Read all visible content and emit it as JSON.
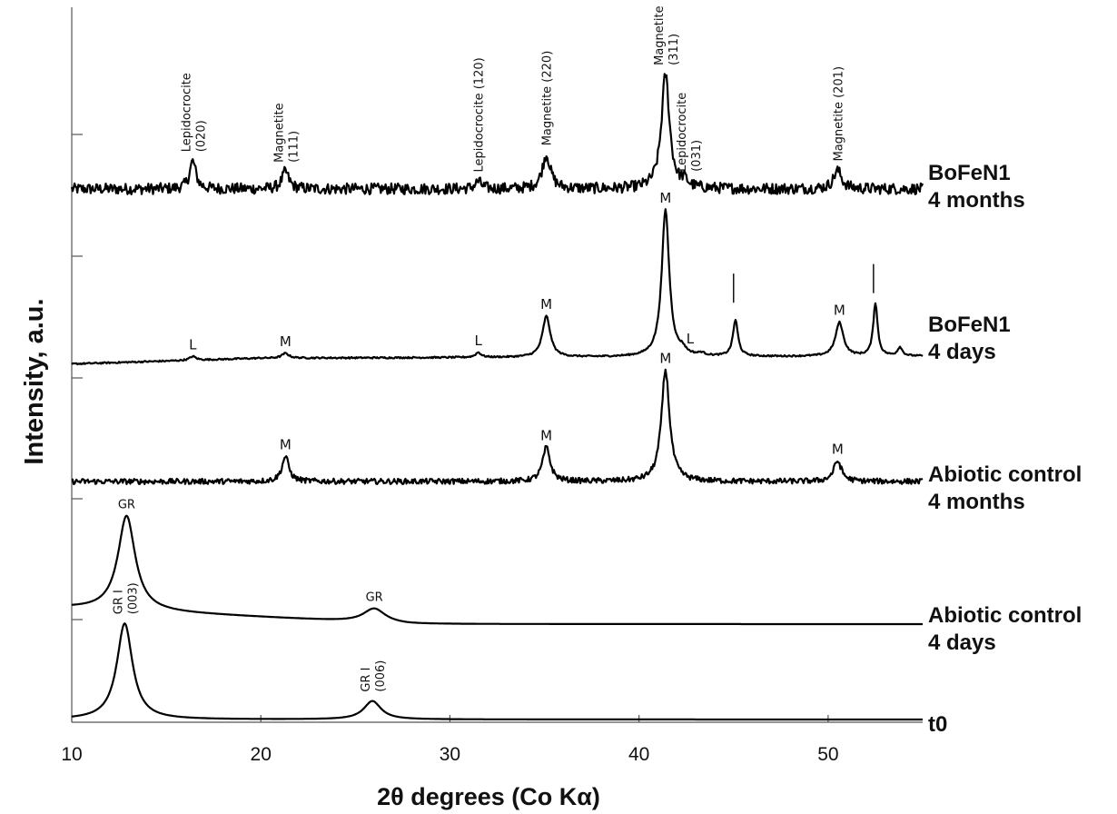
{
  "chart_data": {
    "type": "line",
    "xlabel": "2θ degrees (Co Kα)",
    "ylabel": "Intensity, a.u.",
    "xlim": [
      10,
      55
    ],
    "x_ticks": [
      "10",
      "20",
      "30",
      "40",
      "50"
    ],
    "x_tick_values": [
      10,
      20,
      30,
      40,
      50
    ],
    "grid": false,
    "legend": "none",
    "series": [
      {
        "name": "BoFeN1 4 months",
        "label_lines": [
          "BoFeN1",
          "4 months"
        ],
        "noise": 0.045,
        "peaks": [
          [
            16.4,
            0.45,
            0.2
          ],
          [
            21.3,
            0.28,
            0.22
          ],
          [
            31.5,
            0.12,
            0.2
          ],
          [
            35.1,
            0.55,
            0.26
          ],
          [
            41.4,
            1.85,
            0.26
          ],
          [
            42.4,
            0.1,
            0.2
          ],
          [
            50.5,
            0.3,
            0.26
          ]
        ],
        "peak_labels": [
          {
            "x": 16.4,
            "lines": [
              "Lepidocrocite",
              "(020)"
            ]
          },
          {
            "x": 21.3,
            "lines": [
              "Magnetite",
              "(111)"
            ]
          },
          {
            "x": 31.5,
            "lines": [
              "Lepidocrocite (120)"
            ]
          },
          {
            "x": 35.1,
            "lines": [
              "Magnetite (220)"
            ]
          },
          {
            "x": 41.4,
            "lines": [
              "Magnetite",
              "(311)"
            ]
          },
          {
            "x": 42.6,
            "lines": [
              "Lepidocrocite",
              "(031)"
            ]
          },
          {
            "x": 50.5,
            "lines": [
              "Magnetite (201)"
            ]
          }
        ]
      },
      {
        "name": "BoFeN1 4 days",
        "label_lines": [
          "BoFeN1",
          "4 days"
        ],
        "noise": 0.008,
        "peaks": [
          [
            16.4,
            0.08,
            0.2
          ],
          [
            21.3,
            0.1,
            0.22
          ],
          [
            31.5,
            0.1,
            0.18
          ],
          [
            35.1,
            0.85,
            0.25
          ],
          [
            41.4,
            3.05,
            0.24
          ],
          [
            42.3,
            0.1,
            0.2
          ],
          [
            43.3,
            0.05,
            0.2
          ],
          [
            45.1,
            0.75,
            0.16
          ],
          [
            50.6,
            0.7,
            0.25
          ],
          [
            52.5,
            1.1,
            0.14
          ],
          [
            53.8,
            0.18,
            0.15
          ]
        ],
        "peak_labels": [
          {
            "x": 16.4,
            "lines": [
              "L"
            ]
          },
          {
            "x": 21.3,
            "lines": [
              "M"
            ]
          },
          {
            "x": 31.5,
            "lines": [
              "L"
            ]
          },
          {
            "x": 35.1,
            "lines": [
              "M"
            ]
          },
          {
            "x": 41.4,
            "lines": [
              "M"
            ]
          },
          {
            "x": 42.7,
            "lines": [
              "L"
            ]
          },
          {
            "x": 45.0,
            "lines": [
              "|"
            ]
          },
          {
            "x": 50.6,
            "lines": [
              "M"
            ]
          },
          {
            "x": 52.4,
            "lines": [
              "|"
            ]
          }
        ]
      },
      {
        "name": "Abiotic control 4 months",
        "label_lines": [
          "Abiotic control",
          "4 months"
        ],
        "noise": 0.03,
        "peaks": [
          [
            21.3,
            0.55,
            0.22
          ],
          [
            35.1,
            0.75,
            0.24
          ],
          [
            41.4,
            2.45,
            0.26
          ],
          [
            50.5,
            0.45,
            0.25
          ]
        ],
        "peak_labels": [
          {
            "x": 21.3,
            "lines": [
              "M"
            ]
          },
          {
            "x": 35.1,
            "lines": [
              "M"
            ]
          },
          {
            "x": 41.4,
            "lines": [
              "M"
            ]
          },
          {
            "x": 50.5,
            "lines": [
              "M"
            ]
          }
        ]
      },
      {
        "name": "Abiotic control 4 days",
        "label_lines": [
          "Abiotic control",
          "4 days"
        ],
        "noise": 0.0,
        "peaks": [
          [
            12.9,
            1.9,
            0.55
          ],
          [
            26.0,
            0.28,
            0.7
          ]
        ],
        "peak_labels": [
          {
            "x": 12.9,
            "lines": [
              "GR"
            ]
          },
          {
            "x": 26.0,
            "lines": [
              "GR"
            ]
          }
        ]
      },
      {
        "name": "t0",
        "label_lines": [
          "t0"
        ],
        "noise": 0.0,
        "peaks": [
          [
            12.8,
            2.35,
            0.5
          ],
          [
            25.9,
            0.45,
            0.55
          ]
        ],
        "peak_labels": [
          {
            "x": 12.8,
            "lines": [
              "GR I",
              "(003)"
            ]
          },
          {
            "x": 25.9,
            "lines": [
              "GR I",
              "(006)"
            ]
          }
        ]
      }
    ]
  }
}
